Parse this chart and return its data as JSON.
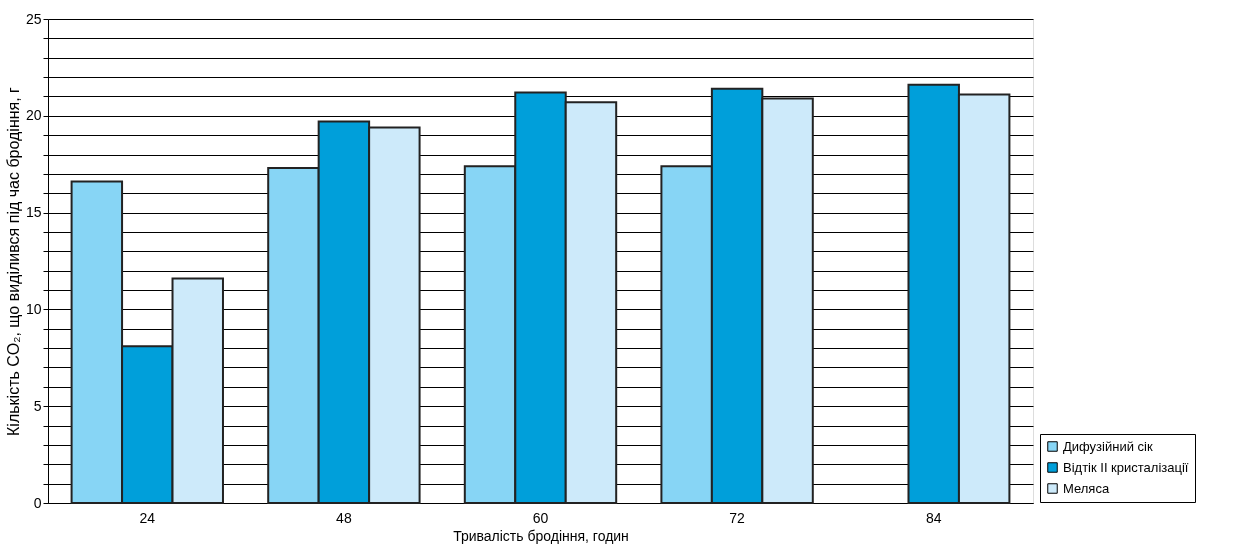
{
  "chart_data": {
    "type": "bar",
    "xlabel": "Тривалість бродіння, годин",
    "ylabel": "Кількість CO₂, що виділився під час бродіння, г",
    "categories": [
      "24",
      "48",
      "60",
      "72",
      "84"
    ],
    "series": [
      {
        "name": "Дифузійний сік",
        "color": "#87d5f5",
        "values": [
          16.6,
          17.3,
          17.4,
          17.4,
          null
        ]
      },
      {
        "name": "Відтік II кристалізації",
        "color": "#009fda",
        "values": [
          8.1,
          19.7,
          21.2,
          21.4,
          21.6
        ]
      },
      {
        "name": "Меляса",
        "color": "#cdeafa",
        "values": [
          11.6,
          19.4,
          20.7,
          20.9,
          21.1
        ]
      }
    ],
    "ylim": [
      0,
      25
    ],
    "yticks": [
      0,
      {
        "value": 1,
        "label": null
      },
      {
        "value": 2,
        "label": null
      },
      {
        "value": 3,
        "label": null
      },
      {
        "value": 4,
        "label": null
      },
      5,
      {
        "value": 6,
        "label": null
      },
      {
        "value": 7,
        "label": null
      },
      {
        "value": 8,
        "label": null
      },
      {
        "value": 9,
        "label": null
      },
      10,
      {
        "value": 11,
        "label": null
      },
      {
        "value": 12,
        "label": null
      },
      {
        "value": 13,
        "label": null
      },
      {
        "value": 14,
        "label": null
      },
      15,
      {
        "value": 16,
        "label": null
      },
      {
        "value": 17,
        "label": null
      },
      {
        "value": 18,
        "label": null
      },
      {
        "value": 19,
        "label": null
      },
      20,
      {
        "value": 21,
        "label": null
      },
      {
        "value": 22,
        "label": null
      },
      {
        "value": 23,
        "label": null
      },
      {
        "value": 24,
        "label": null
      },
      25
    ],
    "grid": "y",
    "legend": "bottom right"
  }
}
